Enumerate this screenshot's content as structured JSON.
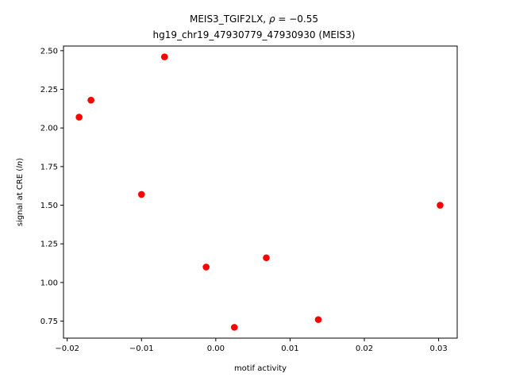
{
  "chart_data": {
    "type": "scatter",
    "title_line1": "MEIS3_TGIF2LX, ρ = −0.55",
    "title_line2": "hg19_chr19_47930779_47930930 (MEIS3)",
    "xlabel": "motif activity",
    "ylabel": "signal at CRE (ln)",
    "xlim": [
      -0.0205,
      0.0325
    ],
    "ylim": [
      0.64,
      2.53
    ],
    "xticks": [
      -0.02,
      -0.01,
      0.0,
      0.01,
      0.02,
      0.03
    ],
    "xtick_labels": [
      "−0.02",
      "−0.01",
      "0.00",
      "0.01",
      "0.02",
      "0.03"
    ],
    "yticks": [
      0.75,
      1.0,
      1.25,
      1.5,
      1.75,
      2.0,
      2.25,
      2.5
    ],
    "ytick_labels": [
      "0.75",
      "1.00",
      "1.25",
      "1.50",
      "1.75",
      "2.00",
      "2.25",
      "2.50"
    ],
    "grid": false,
    "marker_color": "#ff0000",
    "points": [
      {
        "x": -0.0184,
        "y": 2.07
      },
      {
        "x": -0.0168,
        "y": 2.18
      },
      {
        "x": -0.0069,
        "y": 2.46
      },
      {
        "x": -0.01,
        "y": 1.57
      },
      {
        "x": -0.0013,
        "y": 1.1
      },
      {
        "x": 0.0025,
        "y": 0.71
      },
      {
        "x": 0.0068,
        "y": 1.16
      },
      {
        "x": 0.0138,
        "y": 0.76
      },
      {
        "x": 0.0302,
        "y": 1.5
      }
    ]
  }
}
